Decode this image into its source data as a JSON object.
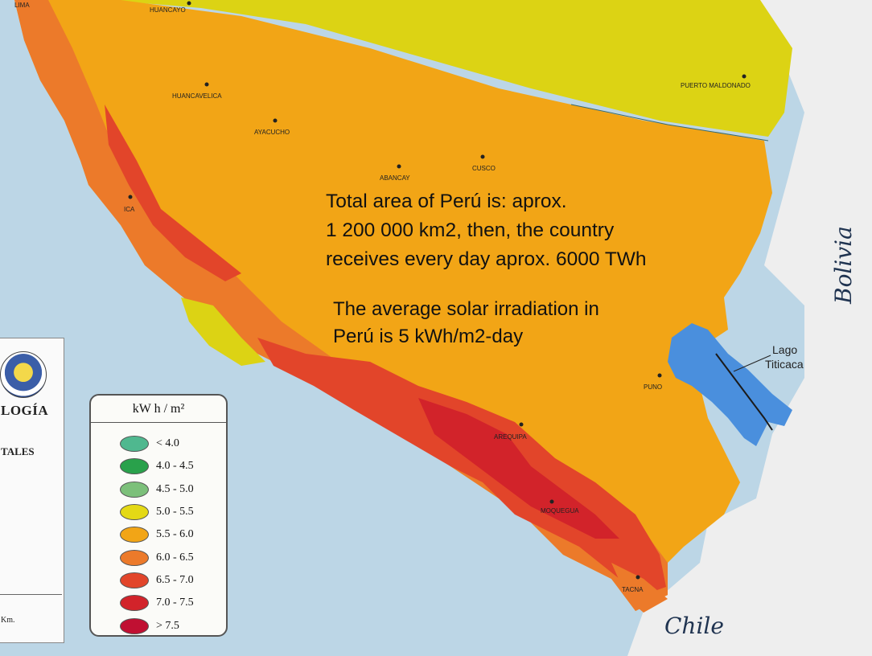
{
  "cities": {
    "lima": "LIMA",
    "huancayo": "HUANCAYO",
    "huancavelica": "HUANCAVELICA",
    "ayacucho": "AYACUCHO",
    "abancay": "ABANCAY",
    "cusco": "CUSCO",
    "ica": "ICA",
    "puerto_maldonado": "PUERTO MALDONADO",
    "puno": "PUNO",
    "arequipa": "AREQUIPA",
    "moquegua": "MOQUEGUA",
    "tacna": "TACNA"
  },
  "countries": {
    "bolivia": "Bolivia",
    "chile": "Chile"
  },
  "lake": {
    "line1": "Lago",
    "line2": "Titicaca"
  },
  "overlay": {
    "area_line1": "Total area of Perú is: aprox.",
    "area_line2": "1 200 000 km2, then, the country",
    "area_line3": "receives every day aprox. 6000 TWh",
    "avg_line1": "The average solar irradiation in",
    "avg_line2": "Perú is 5 kWh/m2-day"
  },
  "panel": {
    "org_fragment": "LOGÍA",
    "sub_fragment": "TALES",
    "scale_fragment": "Km."
  },
  "legend": {
    "title": "kW h / m²",
    "ranges": [
      {
        "label": "< 4.0",
        "color": "#4fb88f"
      },
      {
        "label": "4.0 - 4.5",
        "color": "#29a14b"
      },
      {
        "label": "4.5 - 5.0",
        "color": "#7cc07a"
      },
      {
        "label": "5.0 - 5.5",
        "color": "#e4d915"
      },
      {
        "label": "5.5 - 6.0",
        "color": "#f2a516"
      },
      {
        "label": "6.0 - 6.5",
        "color": "#ec7a2a"
      },
      {
        "label": "6.5 - 7.0",
        "color": "#e2452a"
      },
      {
        "label": "7.0 - 7.5",
        "color": "#d2232a"
      },
      {
        "label": "> 7.5",
        "color": "#c01032"
      }
    ]
  },
  "colors": {
    "sea": "#bcd6e6",
    "land_outside": "#eeeeee",
    "lake": "#4a8fdd",
    "border": "#1b1b1b"
  }
}
